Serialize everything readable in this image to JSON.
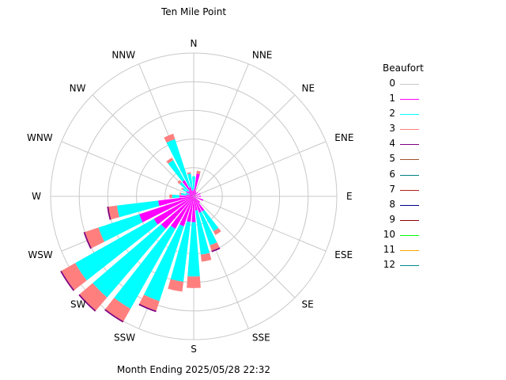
{
  "chart_data": {
    "type": "wind-rose",
    "title": "Ten Mile Point",
    "footer": "Month Ending 2025/05/28 22:32",
    "directions": [
      "N",
      "NNE",
      "NE",
      "ENE",
      "E",
      "ESE",
      "SE",
      "SSE",
      "S",
      "SSW",
      "SW",
      "WSW",
      "W",
      "WNW",
      "NW",
      "NNW"
    ],
    "rings": [
      0.2,
      0.4,
      0.6,
      0.8,
      1.0
    ],
    "legend": {
      "title": "Beaufort",
      "items": [
        {
          "label": "0",
          "color": "#c8c8c8"
        },
        {
          "label": "1",
          "color": "#ff00ff"
        },
        {
          "label": "2",
          "color": "#00ffff"
        },
        {
          "label": "3",
          "color": "#ff7f7f"
        },
        {
          "label": "4",
          "color": "#800080"
        },
        {
          "label": "5",
          "color": "#a0522d"
        },
        {
          "label": "6",
          "color": "#008080"
        },
        {
          "label": "7",
          "color": "#b22222"
        },
        {
          "label": "8",
          "color": "#000080"
        },
        {
          "label": "9",
          "color": "#8b0000"
        },
        {
          "label": "10",
          "color": "#00ff00"
        },
        {
          "label": "11",
          "color": "#ffa500"
        },
        {
          "label": "12",
          "color": "#008b8b"
        }
      ]
    },
    "stack_order": [
      1,
      2,
      3,
      4
    ],
    "petals": [
      {
        "dir": 0,
        "v": [
          0.05,
          0.09,
          0.0,
          0.0
        ]
      },
      {
        "dir": 11.25,
        "v": [
          0.16,
          0.0,
          0.02,
          0.0
        ]
      },
      {
        "dir": 22.5,
        "v": [
          0.04,
          0.0,
          0.0,
          0.0
        ]
      },
      {
        "dir": 33.75,
        "v": [
          0.03,
          0.0,
          0.0,
          0.0
        ]
      },
      {
        "dir": 45,
        "v": [
          0.04,
          0.0,
          0.0,
          0.0
        ]
      },
      {
        "dir": 67.5,
        "v": [
          0.05,
          0.0,
          0.0,
          0.0
        ]
      },
      {
        "dir": 90,
        "v": [
          0.05,
          0.0,
          0.0,
          0.0
        ]
      },
      {
        "dir": 112.5,
        "v": [
          0.07,
          0.0,
          0.0,
          0.0
        ]
      },
      {
        "dir": 135,
        "v": [
          0.06,
          0.0,
          0.0,
          0.0
        ]
      },
      {
        "dir": 146.25,
        "v": [
          0.12,
          0.16,
          0.03,
          0.0
        ]
      },
      {
        "dir": 157.5,
        "v": [
          0.12,
          0.24,
          0.04,
          0.01
        ]
      },
      {
        "dir": 168.75,
        "v": [
          0.1,
          0.31,
          0.05,
          0.0
        ]
      },
      {
        "dir": 180,
        "v": [
          0.18,
          0.38,
          0.08,
          0.0
        ]
      },
      {
        "dir": 191.25,
        "v": [
          0.18,
          0.42,
          0.07,
          0.0
        ]
      },
      {
        "dir": 202.5,
        "v": [
          0.22,
          0.55,
          0.07,
          0.01
        ]
      },
      {
        "dir": 213.75,
        "v": [
          0.26,
          0.64,
          0.1,
          0.01
        ]
      },
      {
        "dir": 225,
        "v": [
          0.3,
          0.63,
          0.12,
          0.01
        ]
      },
      {
        "dir": 236.25,
        "v": [
          0.32,
          0.63,
          0.11,
          0.01
        ]
      },
      {
        "dir": 247.5,
        "v": [
          0.4,
          0.3,
          0.1,
          0.01
        ]
      },
      {
        "dir": 258.75,
        "v": [
          0.25,
          0.29,
          0.06,
          0.01
        ]
      },
      {
        "dir": 270,
        "v": [
          0.1,
          0.05,
          0.02,
          0.0
        ]
      },
      {
        "dir": 281.25,
        "v": [
          0.05,
          0.04,
          0.01,
          0.0
        ]
      },
      {
        "dir": 292.5,
        "v": [
          0.03,
          0.03,
          0.0,
          0.0
        ]
      },
      {
        "dir": 303.75,
        "v": [
          0.06,
          0.03,
          0.01,
          0.0
        ]
      },
      {
        "dir": 315,
        "v": [
          0.05,
          0.08,
          0.02,
          0.0
        ]
      },
      {
        "dir": 326.25,
        "v": [
          0.13,
          0.16,
          0.02,
          0.0
        ]
      },
      {
        "dir": 337.5,
        "v": [
          0.07,
          0.35,
          0.04,
          0.0
        ]
      },
      {
        "dir": 348.75,
        "v": [
          0.04,
          0.12,
          0.01,
          0.0
        ]
      }
    ]
  }
}
